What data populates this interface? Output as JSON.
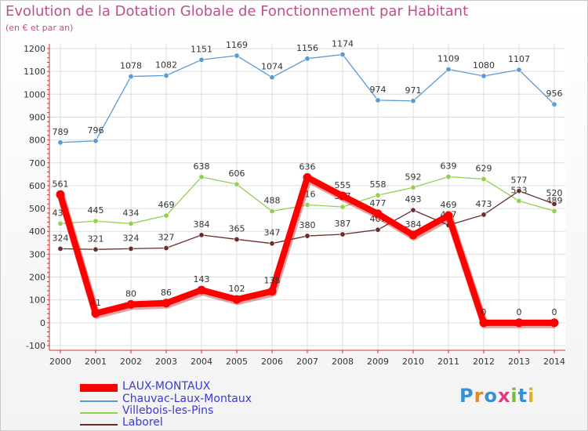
{
  "title": "Evolution de la Dotation Globale de Fonctionnement par Habitant",
  "subtitle": "(en € et par an)",
  "brand": "Proxiti",
  "chart_data": {
    "type": "line",
    "x": [
      "2000",
      "2001",
      "2002",
      "2003",
      "2004",
      "2005",
      "2006",
      "2007",
      "2008",
      "2009",
      "2010",
      "2011",
      "2012",
      "2013",
      "2014"
    ],
    "ylim": [
      -100,
      1200
    ],
    "yticks": [
      -100,
      0,
      100,
      200,
      300,
      400,
      500,
      600,
      700,
      800,
      900,
      1000,
      1100,
      1200
    ],
    "grid": true,
    "legend_position": "bottom-left",
    "series": [
      {
        "name": "Chauvac-Laux-Montaux",
        "color": "#5b9bd5",
        "values": [
          789,
          796,
          1078,
          1082,
          1151,
          1169,
          1074,
          1156,
          1174,
          974,
          971,
          1109,
          1080,
          1107,
          956
        ]
      },
      {
        "name": "Villebois-les-Pins",
        "color": "#92d050",
        "values": [
          434,
          445,
          434,
          469,
          638,
          606,
          488,
          516,
          507,
          558,
          592,
          639,
          629,
          533,
          489
        ]
      },
      {
        "name": "Laborel",
        "color": "#6b2c2c",
        "values": [
          324,
          321,
          324,
          327,
          384,
          365,
          347,
          380,
          387,
          407,
          493,
          427,
          473,
          577,
          520
        ]
      },
      {
        "name": "LAUX-MONTAUX",
        "color": "#ff0000",
        "values": [
          561,
          41,
          80,
          86,
          143,
          102,
          138,
          636,
          555,
          477,
          384,
          469,
          0,
          0,
          0
        ]
      }
    ]
  },
  "legend": [
    {
      "name": "LAUX-MONTAUX",
      "color": "#ff0000",
      "text_color": "#3a3ad0"
    },
    {
      "name": "Chauvac-Laux-Montaux",
      "color": "#5b9bd5",
      "text_color": "#3a3ad0"
    },
    {
      "name": "Villebois-les-Pins",
      "color": "#92d050",
      "text_color": "#3a3ad0"
    },
    {
      "name": "Laborel",
      "color": "#6b2c2c",
      "text_color": "#3a3ad0"
    }
  ],
  "colors": {
    "title": "#c0508a",
    "grid": "#dddddd",
    "axis_text": "#333333"
  }
}
